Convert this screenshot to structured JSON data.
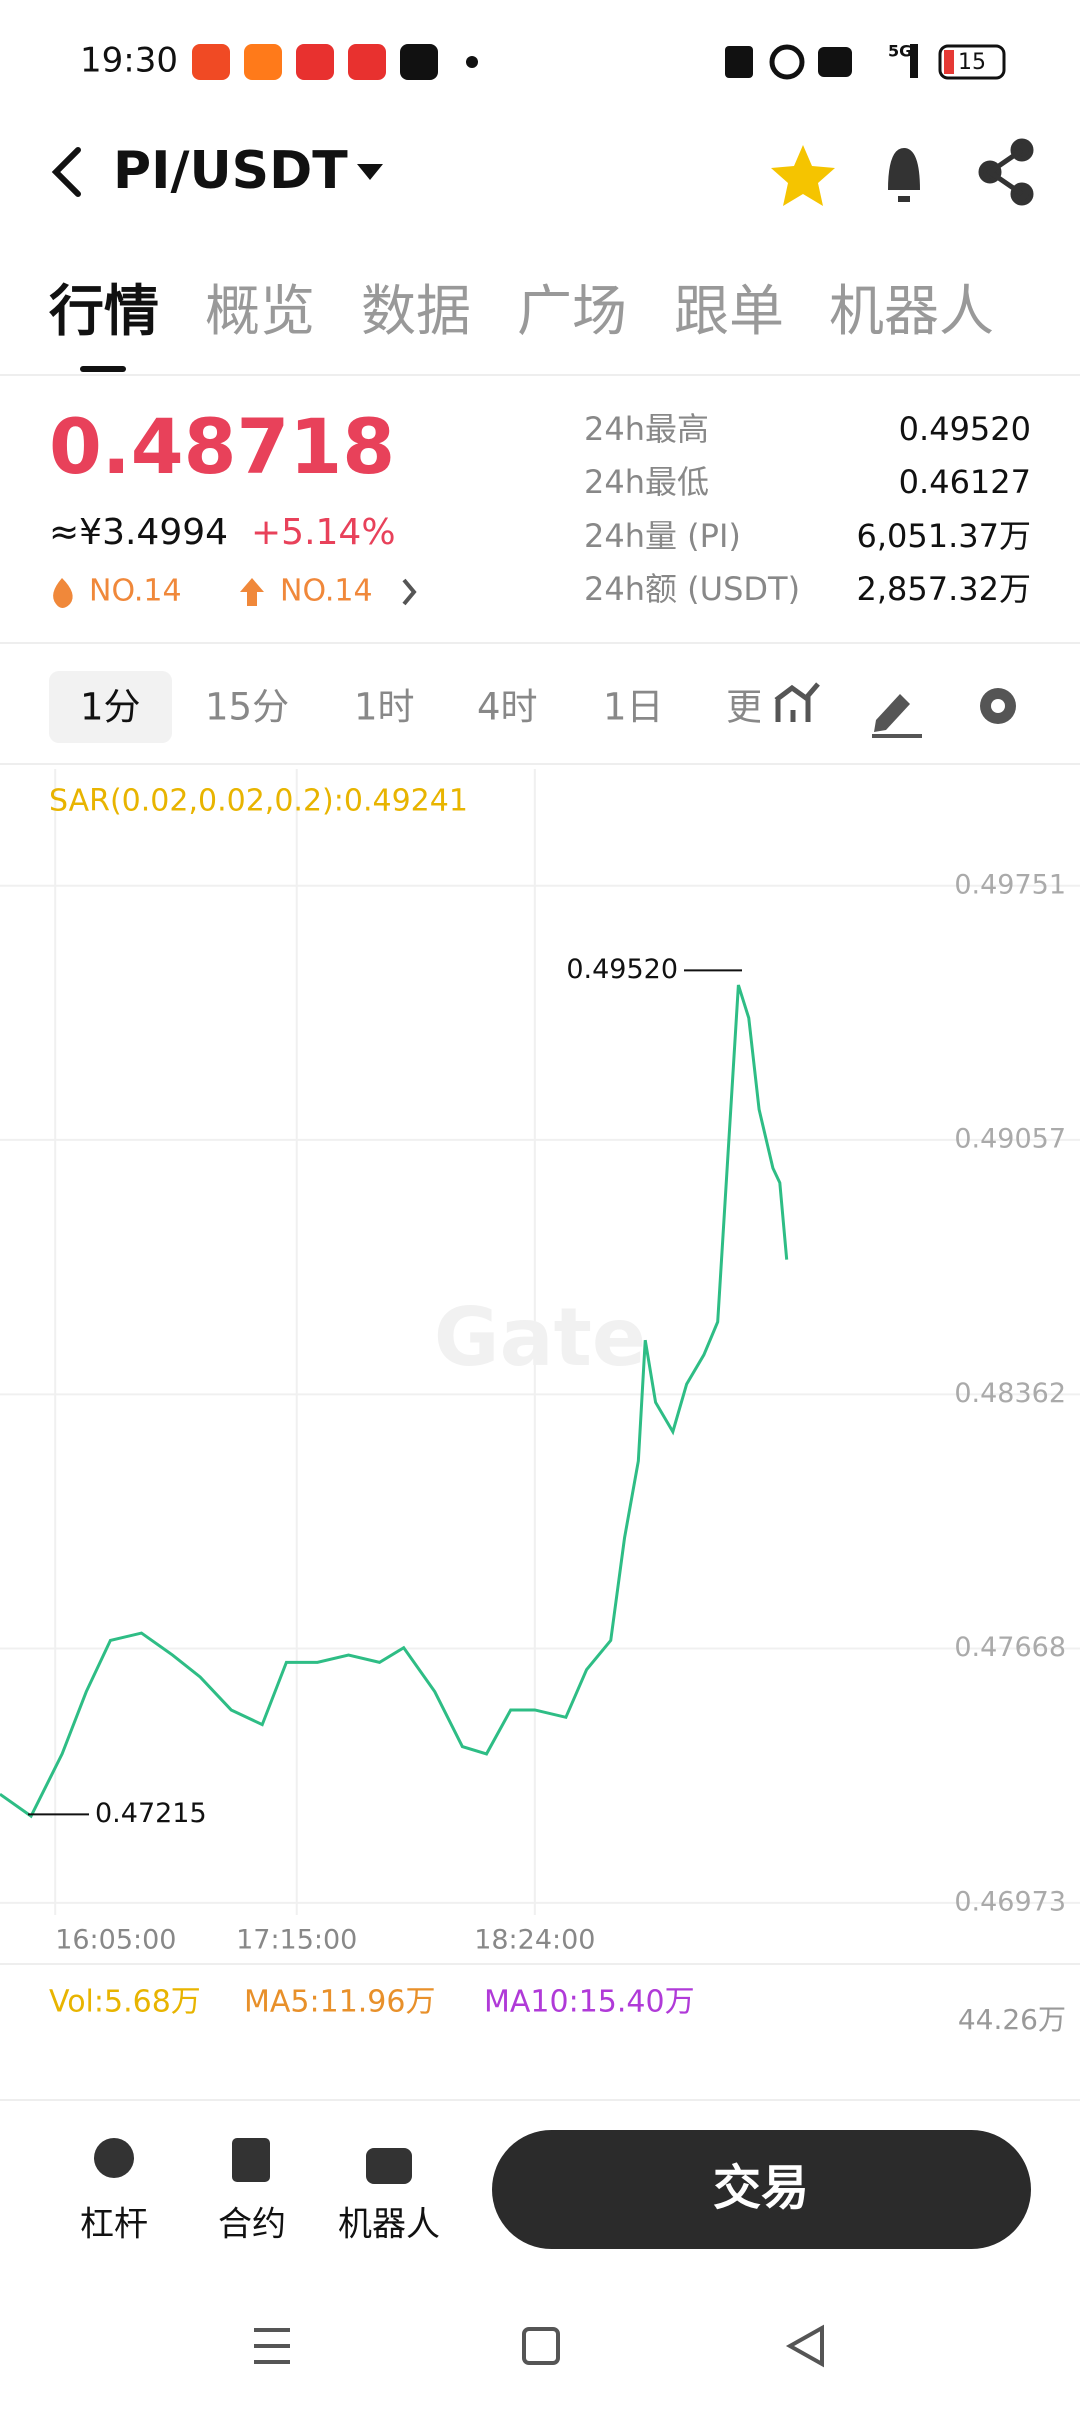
{
  "status_bar": {
    "time": "19:30",
    "network": "5G",
    "battery": "15"
  },
  "header": {
    "pair": "PI/USDT"
  },
  "tabs": [
    "行情",
    "概览",
    "数据",
    "广场",
    "跟单",
    "机器人"
  ],
  "ticker": {
    "price": "0.48718",
    "cny": "≈¥3.4994",
    "change": "+5.14%",
    "rank_hot": "NO.14",
    "rank_gain": "NO.14",
    "stats": [
      {
        "label": "24h最高",
        "value": "0.49520"
      },
      {
        "label": "24h最低",
        "value": "0.46127"
      },
      {
        "label": "24h量 (PI)",
        "value": "6,051.37万"
      },
      {
        "label": "24h额 (USDT)",
        "value": "2,857.32万"
      }
    ]
  },
  "intervals": [
    "1分",
    "15分",
    "1时",
    "4时",
    "1日",
    "更"
  ],
  "chart_data": {
    "type": "line",
    "indicator": "SAR(0.02,0.02,0.2):0.49241",
    "x": [
      949,
      958,
      967,
      974,
      981,
      990,
      999,
      1007,
      1016,
      1025,
      1032,
      1041,
      1050,
      1059,
      1066,
      1075,
      1083,
      1090,
      1097,
      1104,
      1113,
      1119,
      1126,
      1130,
      1134,
      1136,
      1139,
      1144,
      1148,
      1153,
      1157,
      1160,
      1163,
      1166,
      1169,
      1173,
      1175,
      1177
    ],
    "series": [
      {
        "color": "#2ebd85",
        "values": [
          0.4727,
          0.4721,
          0.4738,
          0.4755,
          0.4769,
          0.4771,
          0.4765,
          0.4759,
          0.475,
          0.4746,
          0.4763,
          0.4763,
          0.4765,
          0.4763,
          0.4767,
          0.4755,
          0.474,
          0.4738,
          0.475,
          0.475,
          0.4748,
          0.4761,
          0.4769,
          0.4797,
          0.4818,
          0.4851,
          0.4834,
          0.4826,
          0.4839,
          0.4847,
          0.4856,
          0.4902,
          0.4948,
          0.4939,
          0.4914,
          0.4898,
          0.4894,
          0.4873
        ]
      }
    ],
    "xlim": [
      949,
      1262
    ],
    "xticks": [
      {
        "value": 965,
        "label": "16:05:00"
      },
      {
        "value": 1035,
        "label": "17:15:00"
      },
      {
        "value": 1104,
        "label": "18:24:00"
      }
    ],
    "ylim": [
      0.4694,
      0.5007
    ],
    "yticks": [
      0.49751,
      0.49057,
      0.48362,
      0.47668,
      0.46973
    ],
    "grid": true,
    "annotations": [
      {
        "value": 0.4952,
        "label": "0.49520"
      },
      {
        "value": 0.47215,
        "label": "0.47215"
      }
    ]
  },
  "volume": {
    "vol": "Vol:5.68万",
    "ma5": "MA5:11.96万",
    "ma10": "MA10:15.40万",
    "axis_max": "44.26万"
  },
  "bottom_nav": {
    "items": [
      "杠杆",
      "合约",
      "机器人"
    ],
    "trade": "交易"
  }
}
